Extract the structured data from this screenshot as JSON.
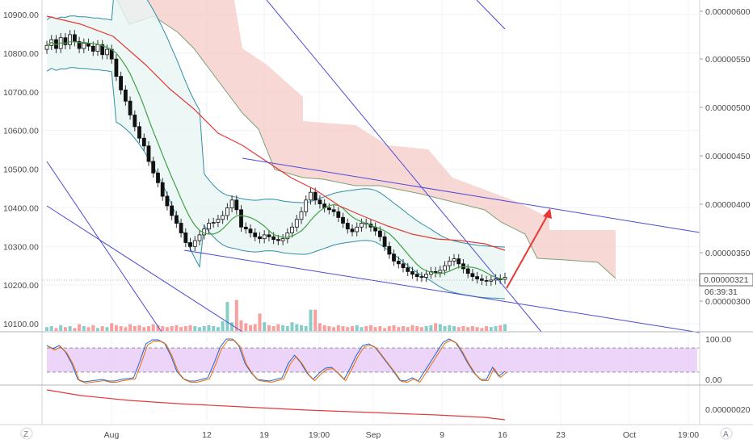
{
  "chart_data": {
    "type": "candlestick",
    "x_ticks": [
      "Aug",
      "12",
      "19",
      "19:00",
      "Sep",
      "9",
      "16",
      "23",
      "Oct",
      "19:00"
    ],
    "left_axis": {
      "ticks": [
        "10900.00",
        "10800.00",
        "10700.00",
        "10600.00",
        "10500.00",
        "10400.00",
        "10300.00",
        "10200.00",
        "10100.00"
      ],
      "range": [
        10080,
        10930
      ]
    },
    "right_axis": {
      "ticks": [
        "0.00000600",
        "0.00000550",
        "0.00000500",
        "0.00000450",
        "0.00000400",
        "0.00000350",
        "0.00000300"
      ],
      "range": [
        2.62e-06,
        6.1e-06
      ]
    },
    "last_price": {
      "value": "0.00000321",
      "countdown": "06:39:31"
    },
    "oscillator": {
      "ticks": [
        "100.00",
        "0.00"
      ],
      "upper_level": 80,
      "lower_level": 20
    },
    "lower_pane": {
      "ticks": [
        "0.00000020"
      ]
    },
    "candles_close": [
      10820,
      10835,
      10812,
      10840,
      10822,
      10848,
      10830,
      10812,
      10826,
      10818,
      10805,
      10822,
      10796,
      10810,
      10785,
      10740,
      10705,
      10676,
      10640,
      10610,
      10580,
      10560,
      10520,
      10490,
      10465,
      10430,
      10405,
      10380,
      10360,
      10335,
      10310,
      10300,
      10315,
      10330,
      10345,
      10360,
      10362,
      10370,
      10380,
      10400,
      10420,
      10395,
      10350,
      10345,
      10335,
      10325,
      10320,
      10330,
      10325,
      10318,
      10315,
      10320,
      10335,
      10350,
      10370,
      10390,
      10420,
      10440,
      10420,
      10410,
      10400,
      10395,
      10390,
      10375,
      10360,
      10345,
      10338,
      10350,
      10360,
      10358,
      10350,
      10340,
      10325,
      10300,
      10280,
      10262,
      10255,
      10245,
      10235,
      10228,
      10222,
      10220,
      10228,
      10235,
      10232,
      10238,
      10250,
      10262,
      10268,
      10255,
      10242,
      10230,
      10222,
      10216,
      10212,
      10210,
      10213,
      10216,
      10215,
      10220
    ],
    "volumes": [
      0.4,
      0.5,
      0.3,
      0.6,
      0.4,
      0.5,
      0.3,
      0.7,
      0.5,
      0.4,
      0.6,
      0.3,
      0.5,
      0.4,
      0.8,
      0.6,
      0.5,
      0.4,
      0.7,
      0.5,
      0.6,
      0.4,
      0.5,
      0.7,
      0.6,
      0.5,
      0.4,
      0.5,
      0.6,
      0.4,
      0.5,
      0.6,
      0.5,
      0.4,
      0.5,
      0.6,
      0.5,
      0.4,
      1.0,
      3.0,
      0.9,
      3.2,
      1.1,
      0.8,
      0.6,
      0.7,
      1.8,
      0.9,
      0.6,
      0.5,
      0.7,
      0.6,
      0.5,
      0.9,
      0.7,
      0.6,
      0.5,
      2.2,
      2.2,
      0.8,
      0.6,
      0.5,
      0.4,
      0.6,
      0.5,
      0.4,
      0.5,
      0.6,
      0.4,
      0.5,
      0.6,
      0.4,
      0.5,
      0.3,
      0.5,
      0.6,
      0.4,
      0.5,
      0.4,
      0.6,
      0.5,
      0.4,
      0.5,
      0.6,
      0.8,
      0.7,
      0.5,
      0.6,
      0.5,
      0.4,
      0.5,
      0.4,
      0.5,
      0.4,
      0.3,
      0.5,
      0.4,
      0.5,
      0.6,
      0.7
    ],
    "legend": "none",
    "grid": true
  },
  "colors": {
    "up": "#26a69a",
    "down": "#ef5350",
    "ma_red": "#e53935",
    "ma_green": "#43a047",
    "band": "#2f8fa5",
    "band_fill": "#e8f5f3",
    "cloud": "#f4c7c3",
    "trend": "#4b4bd6",
    "osc_fill": "#e8c9f7",
    "arrow": "#e53935"
  },
  "buttons": {
    "z": "Z",
    "a": "A"
  }
}
